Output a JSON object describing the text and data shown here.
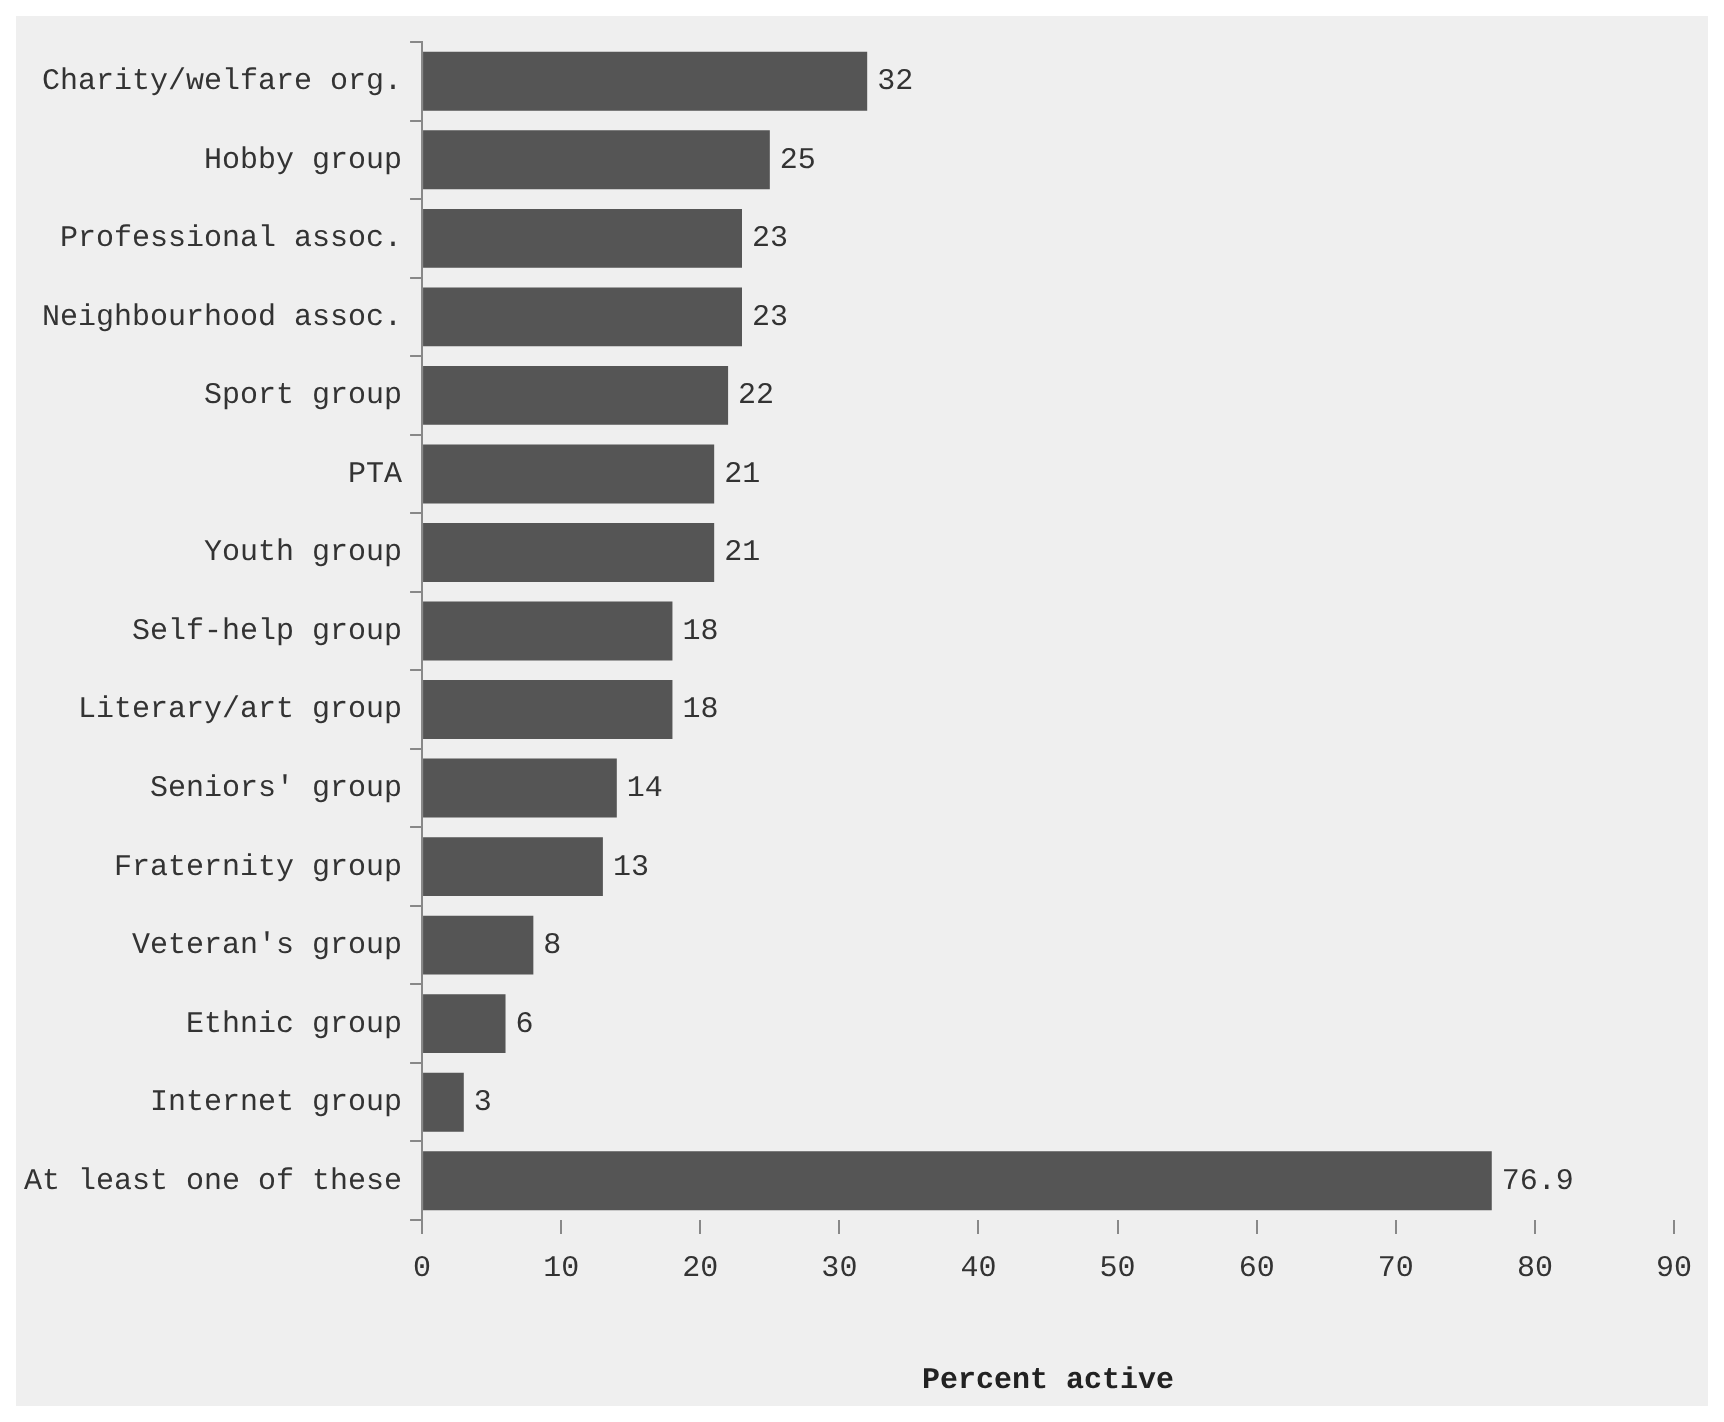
{
  "chart_data": {
    "type": "bar",
    "orientation": "horizontal",
    "xlabel": "Percent active",
    "categories": [
      "Charity/welfare org.",
      "Hobby group",
      "Professional assoc.",
      "Neighbourhood assoc.",
      "Sport group",
      "PTA",
      "Youth group",
      "Self-help group",
      "Literary/art group",
      "Seniors' group",
      "Fraternity group",
      "Veteran's group",
      "Ethnic group",
      "Internet group",
      "At least one of these"
    ],
    "values": [
      32,
      25,
      23,
      23,
      22,
      21,
      21,
      18,
      18,
      14,
      13,
      8,
      6,
      3,
      76.9
    ],
    "color": "#555555",
    "xlim": [
      0,
      90
    ],
    "xticks": [
      0,
      10,
      20,
      30,
      40,
      50,
      60,
      70,
      80,
      90
    ],
    "grid": false,
    "legend": false,
    "data_labels": true
  }
}
